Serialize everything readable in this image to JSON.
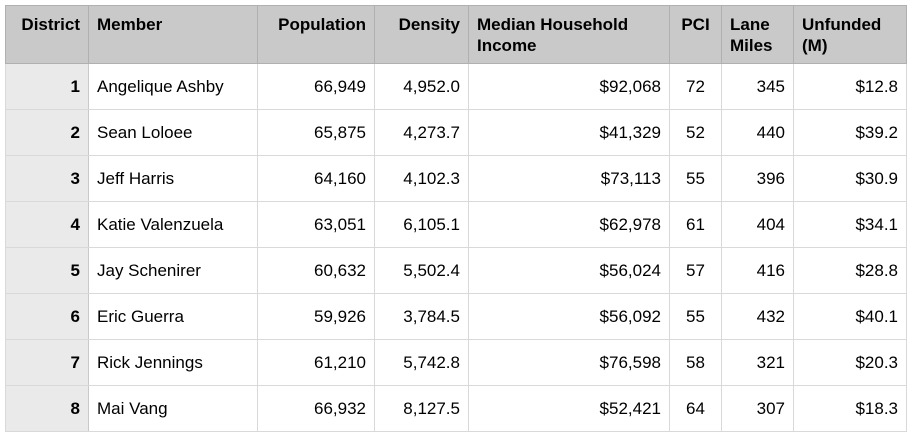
{
  "chart_data": {
    "type": "table",
    "columns": [
      "District",
      "Member",
      "Population",
      "Density",
      "Median Household Income",
      "PCI",
      "Lane Miles",
      "Unfunded (M)"
    ],
    "rows": [
      [
        "1",
        "Angelique Ashby",
        "66,949",
        "4,952.0",
        "$92,068",
        "72",
        "345",
        "$12.8"
      ],
      [
        "2",
        "Sean Loloee",
        "65,875",
        "4,273.7",
        "$41,329",
        "52",
        "440",
        "$39.2"
      ],
      [
        "3",
        "Jeff Harris",
        "64,160",
        "4,102.3",
        "$73,113",
        "55",
        "396",
        "$30.9"
      ],
      [
        "4",
        "Katie Valenzuela",
        "63,051",
        "6,105.1",
        "$62,978",
        "61",
        "404",
        "$34.1"
      ],
      [
        "5",
        "Jay Schenirer",
        "60,632",
        "5,502.4",
        "$56,024",
        "57",
        "416",
        "$28.8"
      ],
      [
        "6",
        "Eric Guerra",
        "59,926",
        "3,784.5",
        "$56,092",
        "55",
        "432",
        "$40.1"
      ],
      [
        "7",
        "Rick Jennings",
        "61,210",
        "5,742.8",
        "$76,598",
        "58",
        "321",
        "$20.3"
      ],
      [
        "8",
        "Mai Vang",
        "66,932",
        "8,127.5",
        "$52,421",
        "64",
        "307",
        "$18.3"
      ]
    ],
    "layout": {
      "header_position": "top",
      "header_column": "District",
      "grid": true
    }
  },
  "style": {
    "header_bg": "#c9c9c9",
    "header_column_bg": "#eaeaea",
    "cell_bg": "#ffffff",
    "grid_line": "#d9d9d9",
    "outer_border": "#b3b3b3",
    "text_color": "#000000"
  }
}
